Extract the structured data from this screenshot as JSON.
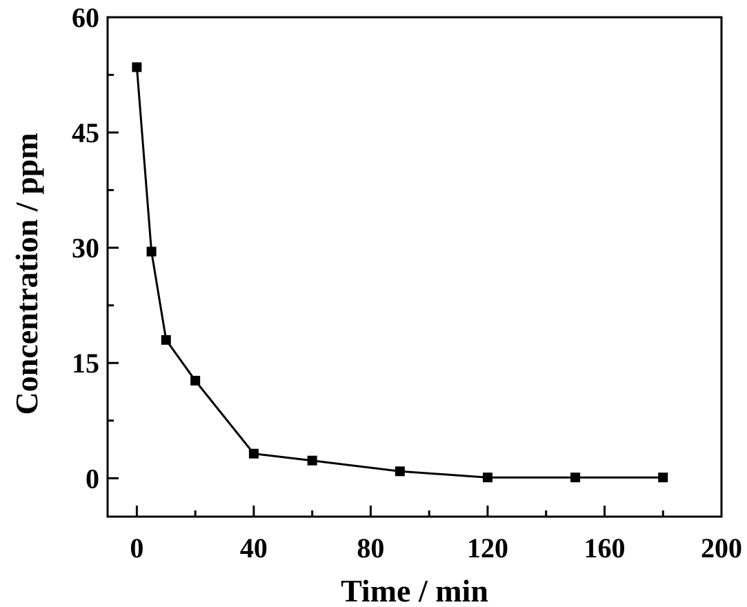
{
  "chart_data": {
    "type": "line",
    "title": "",
    "xlabel": "Time / min",
    "ylabel": "Concentration / ppm",
    "xlim": [
      -10,
      200
    ],
    "ylim": [
      -5,
      60
    ],
    "xticks": [
      0,
      40,
      80,
      120,
      160,
      200
    ],
    "xtick_labels": [
      "0",
      "40",
      "80",
      "120",
      "160",
      "200"
    ],
    "xminor": [
      20,
      60,
      100,
      140,
      180
    ],
    "yticks": [
      0,
      15,
      30,
      45,
      60
    ],
    "ytick_labels": [
      "0",
      "15",
      "30",
      "45",
      "60"
    ],
    "yminor": [
      7.5,
      22.5,
      37.5,
      52.5
    ],
    "grid": false,
    "legend": "none",
    "series": [
      {
        "marker": "square",
        "color": "#000000",
        "x": [
          0,
          5,
          10,
          20,
          40,
          60,
          90,
          120,
          150,
          180
        ],
        "y": [
          53.5,
          29.5,
          18.0,
          12.7,
          3.2,
          2.3,
          0.9,
          0.1,
          0.1,
          0.1
        ]
      }
    ]
  }
}
